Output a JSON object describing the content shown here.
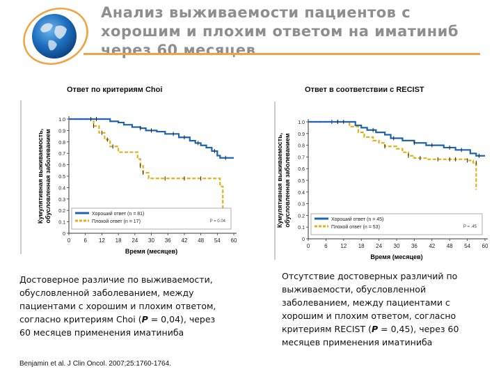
{
  "slide": {
    "title_lines": [
      "Анализ выживаемости пациентов с",
      "хорошим и плохим ответом на иматиниб",
      "через 60 месяцев"
    ],
    "citation": "Benjamin et al. J Clin Oncol. 2007;25:1760-1764."
  },
  "left": {
    "panel_title": "Ответ по критериям Choi",
    "description_lines": [
      "Достоверное различие по выживаемости,",
      "обусловленной заболеванием, между",
      "пациентами с хорошим и плохим ответом,",
      "согласно критериям Choi (",
      "P",
      " = 0,04), через",
      "60 месяцев применения иматиниба"
    ]
  },
  "right": {
    "panel_title": "Ответ в соответствии с RECIST",
    "description_lines": [
      "Отсутствие достоверных различий по",
      "выживаемости, обусловленной",
      "заболеванием, между пациентами с",
      "хорошим и плохим ответом, согласно",
      "критериям RECIST (",
      "P",
      " = 0,45), через 60",
      "месяцев применения иматиниба"
    ]
  },
  "chart_data": [
    {
      "type": "line",
      "subtype": "kaplan-meier step",
      "ylabel": "Кумулятивная выживаемость, обусловленная заболеванием",
      "xlabel": "Время (месяцев)",
      "xlim": [
        0,
        60
      ],
      "ylim": [
        0,
        1.0
      ],
      "xticks": [
        0,
        6,
        12,
        18,
        24,
        30,
        36,
        42,
        48,
        54,
        60
      ],
      "yticks": [
        "0",
        "0.1",
        "0.2",
        "0.3",
        "0.4",
        "0.5",
        "0.6",
        "0.7",
        "0.8",
        "0.9",
        "1.0"
      ],
      "legend_placement": "bottom-left",
      "p_label": "P = 0.04",
      "series": [
        {
          "name": "Хороший ответ (n = 81)",
          "color": "#1f63ad",
          "steps": [
            [
              0,
              1.0
            ],
            [
              14,
              1.0
            ],
            [
              15,
              0.98
            ],
            [
              18,
              0.97
            ],
            [
              20,
              0.95
            ],
            [
              23,
              0.93
            ],
            [
              26,
              0.92
            ],
            [
              28,
              0.9
            ],
            [
              32,
              0.89
            ],
            [
              35,
              0.87
            ],
            [
              40,
              0.84
            ],
            [
              44,
              0.81
            ],
            [
              46,
              0.79
            ],
            [
              48,
              0.77
            ],
            [
              50,
              0.75
            ],
            [
              52,
              0.72
            ],
            [
              54,
              0.68
            ],
            [
              55,
              0.66
            ],
            [
              60,
              0.66
            ]
          ],
          "censored": [
            [
              8,
              1.0
            ],
            [
              10,
              1.0
            ],
            [
              26,
              0.92
            ],
            [
              30,
              0.9
            ],
            [
              38,
              0.87
            ],
            [
              42,
              0.84
            ],
            [
              47,
              0.79
            ],
            [
              53,
              0.72
            ],
            [
              57,
              0.66
            ]
          ]
        },
        {
          "name": "Плохой ответ (n = 17)",
          "color": "#e0b21f",
          "steps": [
            [
              0,
              1.0
            ],
            [
              8,
              1.0
            ],
            [
              9,
              0.94
            ],
            [
              11,
              0.88
            ],
            [
              13,
              0.82
            ],
            [
              15,
              0.76
            ],
            [
              18,
              0.71
            ],
            [
              24,
              0.71
            ],
            [
              25,
              0.65
            ],
            [
              26,
              0.59
            ],
            [
              27,
              0.53
            ],
            [
              29,
              0.48
            ],
            [
              54,
              0.48
            ],
            [
              55,
              0.41
            ],
            [
              56,
              0.18
            ]
          ],
          "censored": [
            [
              9,
              0.94
            ],
            [
              12,
              0.88
            ],
            [
              14,
              0.82
            ],
            [
              16,
              0.76
            ],
            [
              26,
              0.59
            ],
            [
              27,
              0.53
            ],
            [
              35,
              0.48
            ],
            [
              42,
              0.48
            ],
            [
              48,
              0.48
            ],
            [
              56,
              0.18
            ]
          ]
        }
      ]
    },
    {
      "type": "line",
      "subtype": "kaplan-meier step",
      "ylabel": "Кумулятивная выживаемость, обусловленная заболеванием",
      "xlabel": "Время (месяцев)",
      "xlim": [
        0,
        60
      ],
      "ylim": [
        0,
        1.0
      ],
      "xticks": [
        0,
        6,
        12,
        18,
        24,
        30,
        36,
        42,
        48,
        54,
        60
      ],
      "yticks": [
        "0",
        "0.1",
        "0.2",
        "0.3",
        "0.4",
        "0.5",
        "0.6",
        "0.7",
        "0.8",
        "0.9",
        "1.0"
      ],
      "legend_placement": "bottom-left",
      "p_label": "P = .45",
      "series": [
        {
          "name": "Хороший ответ (n = 45)",
          "color": "#1f63ad",
          "steps": [
            [
              0,
              1.0
            ],
            [
              14,
              1.0
            ],
            [
              16,
              0.97
            ],
            [
              18,
              0.95
            ],
            [
              20,
              0.93
            ],
            [
              23,
              0.91
            ],
            [
              26,
              0.89
            ],
            [
              28,
              0.86
            ],
            [
              32,
              0.84
            ],
            [
              36,
              0.82
            ],
            [
              40,
              0.8
            ],
            [
              46,
              0.78
            ],
            [
              50,
              0.76
            ],
            [
              55,
              0.73
            ],
            [
              57,
              0.71
            ],
            [
              60,
              0.71
            ]
          ],
          "censored": [
            [
              10,
              1.0
            ],
            [
              12,
              1.0
            ],
            [
              22,
              0.93
            ],
            [
              29,
              0.86
            ],
            [
              36,
              0.82
            ],
            [
              42,
              0.8
            ],
            [
              48,
              0.78
            ],
            [
              52,
              0.76
            ],
            [
              58,
              0.71
            ]
          ]
        },
        {
          "name": "Плохой ответ (n = 53)",
          "color": "#e0b21f",
          "steps": [
            [
              0,
              1.0
            ],
            [
              12,
              1.0
            ],
            [
              14,
              0.96
            ],
            [
              17,
              0.91
            ],
            [
              19,
              0.87
            ],
            [
              22,
              0.84
            ],
            [
              24,
              0.82
            ],
            [
              26,
              0.79
            ],
            [
              30,
              0.77
            ],
            [
              32,
              0.74
            ],
            [
              34,
              0.71
            ],
            [
              36,
              0.69
            ],
            [
              40,
              0.68
            ],
            [
              54,
              0.67
            ],
            [
              56,
              0.65
            ],
            [
              57,
              0.42
            ]
          ],
          "censored": [
            [
              8,
              1.0
            ],
            [
              10,
              1.0
            ],
            [
              26,
              0.79
            ],
            [
              34,
              0.71
            ],
            [
              38,
              0.69
            ],
            [
              44,
              0.68
            ],
            [
              48,
              0.68
            ],
            [
              50,
              0.68
            ],
            [
              54,
              0.67
            ],
            [
              57,
              0.65
            ]
          ]
        }
      ]
    }
  ]
}
